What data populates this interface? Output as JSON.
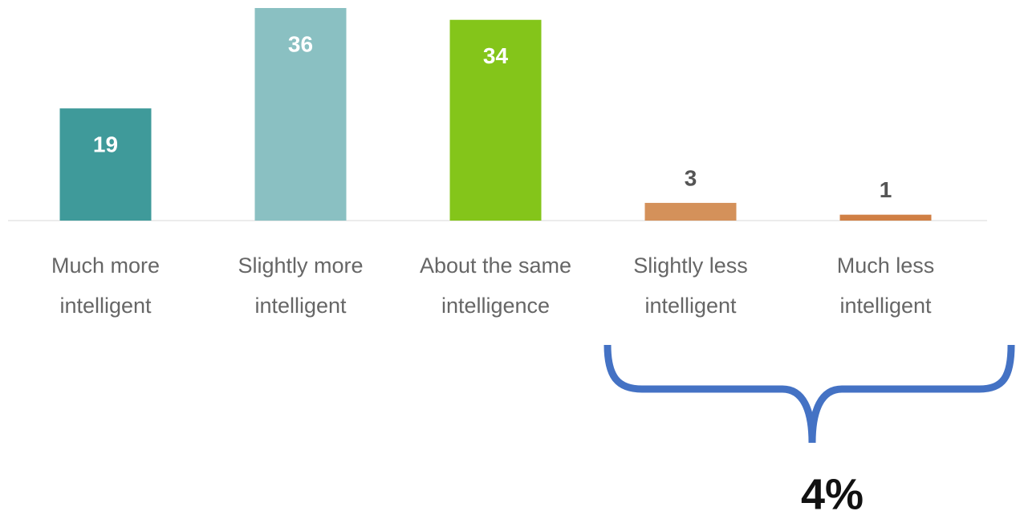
{
  "chart_data": {
    "type": "bar",
    "categories": [
      "Much more intelligent",
      "Slightly more intelligent",
      "About the same intelligence",
      "Slightly less intelligent",
      "Much less intelligent"
    ],
    "values": [
      19,
      36,
      34,
      3,
      1
    ],
    "colors": [
      "#3f9a9a",
      "#8ac0c2",
      "#84c51a",
      "#d4915a",
      "#d07f44"
    ],
    "ylim": [
      0,
      36
    ],
    "annotation": "4%"
  }
}
